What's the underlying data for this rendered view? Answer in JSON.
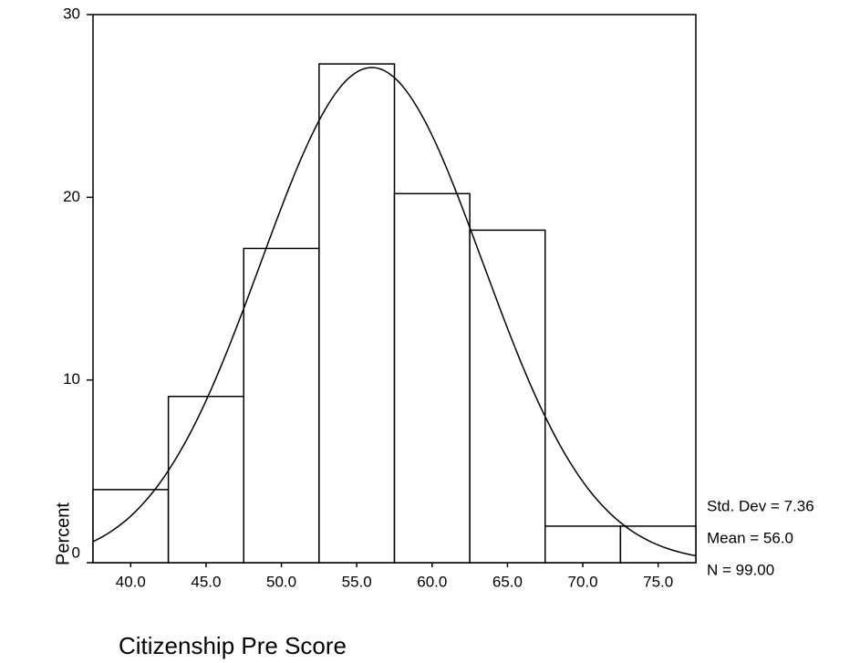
{
  "chart_data": {
    "type": "histogram",
    "x_label": "Citizenship Pre Score",
    "y_label": "Percent",
    "bins": [
      37.5,
      42.5,
      47.5,
      52.5,
      57.5,
      62.5,
      67.5,
      72.5,
      77.5
    ],
    "values": [
      4.0,
      9.1,
      17.2,
      27.3,
      20.2,
      18.2,
      2.0,
      2.0
    ],
    "color": "#ffffff",
    "xlim": [
      37.5,
      77.5
    ],
    "xticks": [
      {
        "value": 40,
        "label": "40.0"
      },
      {
        "value": 45,
        "label": "45.0"
      },
      {
        "value": 50,
        "label": "50.0"
      },
      {
        "value": 55,
        "label": "55.0"
      },
      {
        "value": 60,
        "label": "60.0"
      },
      {
        "value": 65,
        "label": "65.0"
      },
      {
        "value": 70,
        "label": "70.0"
      },
      {
        "value": 75,
        "label": "75.0"
      }
    ],
    "ylim": [
      0,
      30
    ],
    "yticks": [
      0,
      10,
      20,
      30
    ],
    "normal_curve": true,
    "stats": [
      {
        "value": 7.36,
        "label": "Std. Dev = 7.36"
      },
      {
        "value": 56.0,
        "label": "Mean = 56.0"
      },
      {
        "value": 99,
        "label": "N = 99.00"
      }
    ]
  }
}
